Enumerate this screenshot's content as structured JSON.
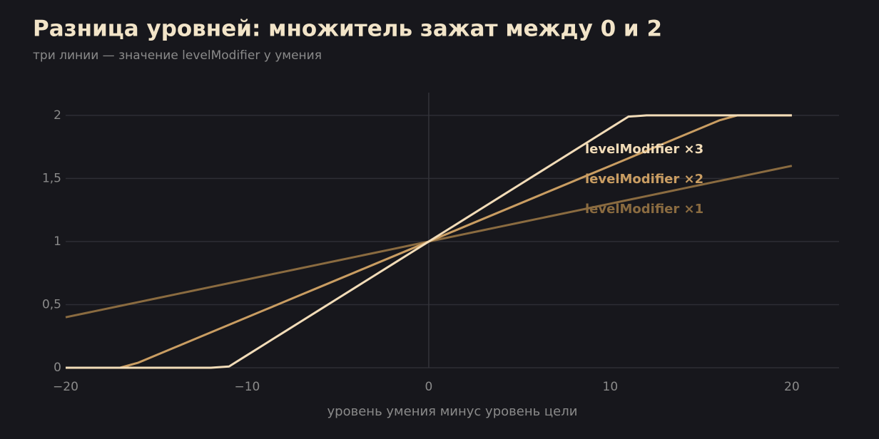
{
  "chart_data": {
    "type": "line",
    "title": "Разница уровней: множитель зажат между 0 и 2",
    "subtitle": "три линии — значение levelModifier у умения",
    "x_label": "уровень умения минус уровень цели",
    "x": [
      -20,
      -19,
      -18,
      -17,
      -16,
      -15,
      -14,
      -13,
      -12,
      -11,
      -10,
      -9,
      -8,
      -7,
      -6,
      -5,
      -4,
      -3,
      -2,
      -1,
      0,
      1,
      2,
      3,
      4,
      5,
      6,
      7,
      8,
      9,
      10,
      11,
      12,
      13,
      14,
      15,
      16,
      17,
      18,
      19,
      20
    ],
    "series": [
      {
        "name": "levelModifier ×1",
        "color": "#8a6b40",
        "values": [
          0.4,
          0.43,
          0.46,
          0.49,
          0.52,
          0.55,
          0.58,
          0.61,
          0.64,
          0.67,
          0.7,
          0.73,
          0.76,
          0.79,
          0.82,
          0.85,
          0.88,
          0.91,
          0.94,
          0.97,
          1,
          1.03,
          1.06,
          1.09,
          1.12,
          1.15,
          1.18,
          1.21,
          1.24,
          1.27,
          1.3,
          1.33,
          1.36,
          1.39,
          1.42,
          1.45,
          1.48,
          1.51,
          1.54,
          1.57,
          1.6
        ]
      },
      {
        "name": "levelModifier ×2",
        "color": "#c99d62",
        "values": [
          0,
          0,
          0,
          0,
          0.04,
          0.1,
          0.16,
          0.22,
          0.28,
          0.34,
          0.4,
          0.46,
          0.52,
          0.58,
          0.64,
          0.7,
          0.76,
          0.82,
          0.88,
          0.94,
          1,
          1.06,
          1.12,
          1.18,
          1.24,
          1.3,
          1.36,
          1.42,
          1.48,
          1.54,
          1.6,
          1.66,
          1.72,
          1.78,
          1.84,
          1.9,
          1.96,
          2,
          2,
          2,
          2
        ]
      },
      {
        "name": "levelModifier ×3",
        "color": "#f2dcb8",
        "values": [
          0,
          0,
          0,
          0,
          0,
          0,
          0,
          0,
          0,
          0.01,
          0.1,
          0.19,
          0.28,
          0.37,
          0.46,
          0.55,
          0.64,
          0.73,
          0.82,
          0.91,
          1,
          1.09,
          1.18,
          1.27,
          1.36,
          1.45,
          1.54,
          1.63,
          1.72,
          1.81,
          1.9,
          1.99,
          2,
          2,
          2,
          2,
          2,
          2,
          2,
          2,
          2
        ]
      }
    ],
    "xlim": [
      -20,
      22.6
    ],
    "ylim": [
      0,
      2.18
    ],
    "xticks": [
      {
        "value": -20,
        "label": "−20"
      },
      {
        "value": -10,
        "label": "−10"
      },
      0,
      10,
      20
    ],
    "yticks": [
      0,
      {
        "value": 0.5,
        "label": "0,5"
      },
      1,
      {
        "value": 1.5,
        "label": "1,5"
      },
      2
    ],
    "grid": true
  }
}
